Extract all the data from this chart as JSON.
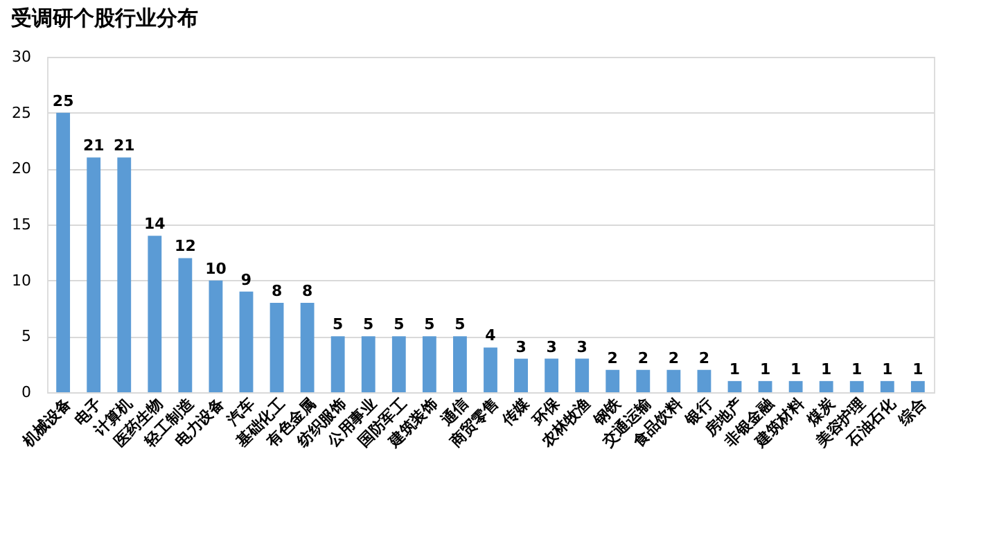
{
  "chart_data": {
    "type": "bar",
    "title": "受调研个股行业分布",
    "categories": [
      "机械设备",
      "电子",
      "计算机",
      "医药生物",
      "轻工制造",
      "电力设备",
      "汽车",
      "基础化工",
      "有色金属",
      "纺织服饰",
      "公用事业",
      "国防军工",
      "建筑装饰",
      "通信",
      "商贸零售",
      "传媒",
      "环保",
      "农林牧渔",
      "钢铁",
      "交通运输",
      "食品饮料",
      "银行",
      "房地产",
      "非银金融",
      "建筑材料",
      "煤炭",
      "美容护理",
      "石油石化",
      "综合"
    ],
    "values": [
      25,
      21,
      21,
      14,
      12,
      10,
      9,
      8,
      8,
      5,
      5,
      5,
      5,
      5,
      4,
      3,
      3,
      3,
      2,
      2,
      2,
      2,
      1,
      1,
      1,
      1,
      1,
      1,
      1
    ],
    "color": "#5b9bd5",
    "ylim": [
      0,
      30
    ],
    "yticks": [
      0,
      5,
      10,
      15,
      20,
      25,
      30
    ],
    "grid": "y",
    "data_labels": true
  }
}
